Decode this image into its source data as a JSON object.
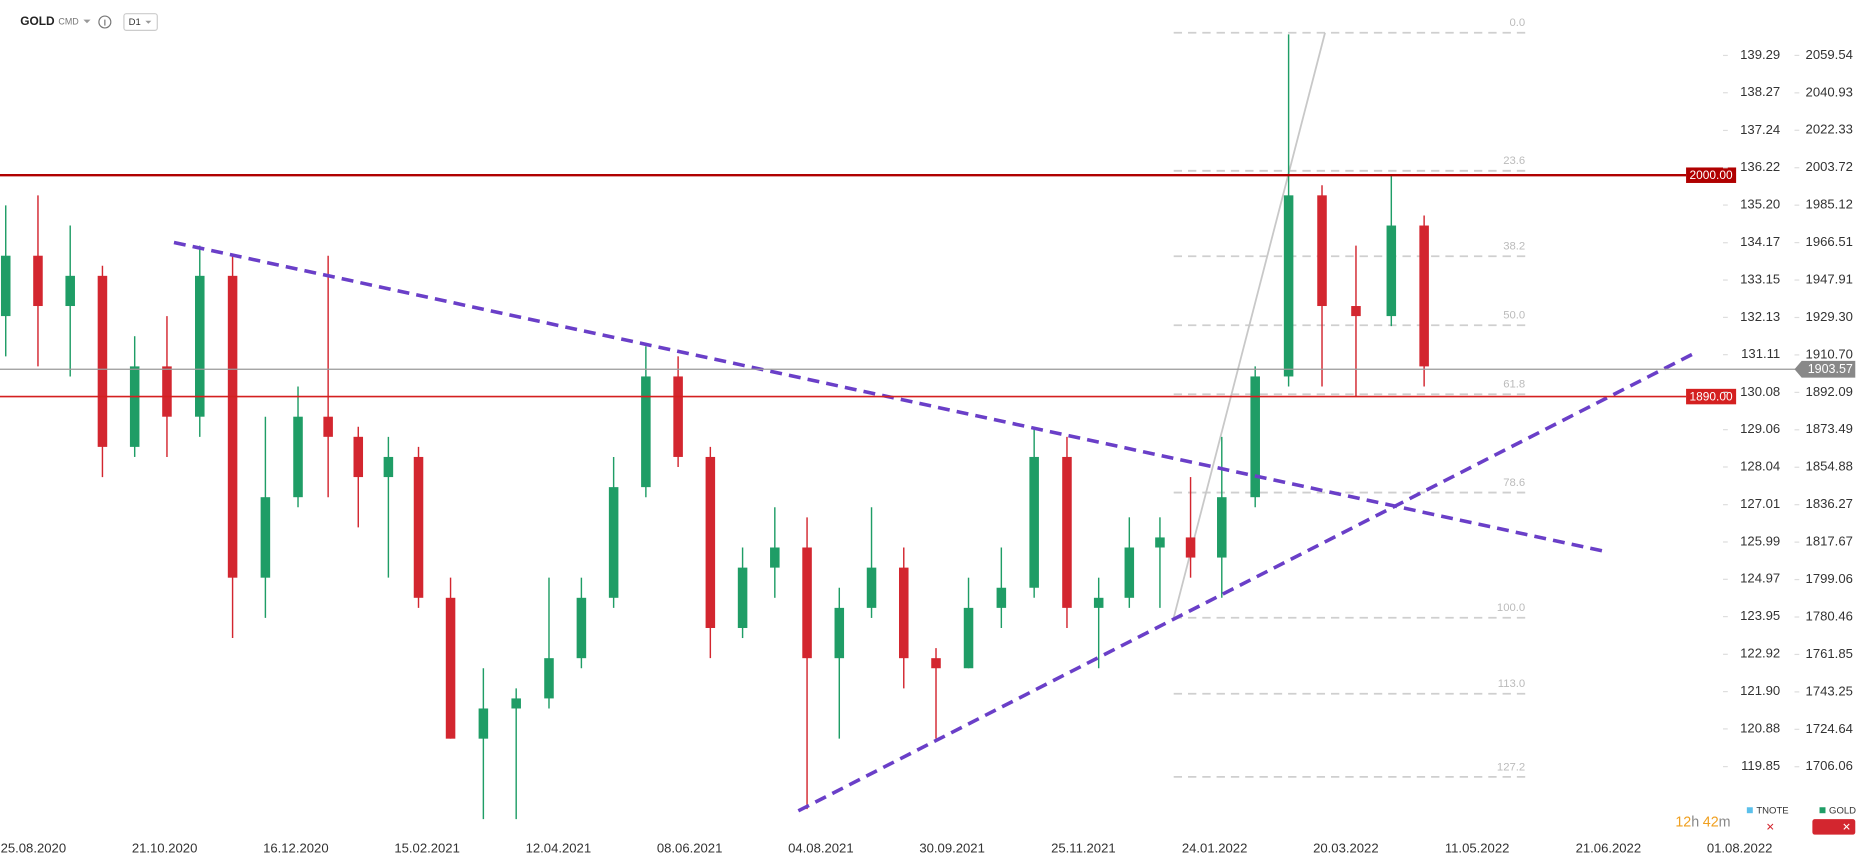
{
  "header": {
    "symbol": "GOLD",
    "market": "CMD",
    "interval": "D1"
  },
  "chart_data": {
    "type": "candlestick",
    "x": [
      "13.08.2020",
      "27.08.2020",
      "10.09.2020",
      "24.09.2020",
      "08.10.2020",
      "22.10.2020",
      "05.11.2020",
      "19.11.2020",
      "03.12.2020",
      "17.12.2020",
      "31.12.2020",
      "14.01.2021",
      "28.01.2021",
      "11.02.2021",
      "25.02.2021",
      "11.03.2021",
      "25.03.2021",
      "08.04.2021",
      "22.04.2021",
      "06.05.2021",
      "20.05.2021",
      "03.06.2021",
      "17.06.2021",
      "01.07.2021",
      "15.07.2021",
      "29.07.2021",
      "12.08.2021",
      "26.08.2021",
      "09.09.2021",
      "23.09.2021",
      "07.10.2021",
      "21.10.2021",
      "04.11.2021",
      "18.11.2021",
      "02.12.2021",
      "16.12.2021",
      "30.12.2021",
      "13.01.2022",
      "27.01.2022",
      "10.02.2022",
      "24.02.2022",
      "10.03.2022",
      "24.03.2022",
      "07.04.2022",
      "20.04.2022"
    ],
    "open": [
      1930,
      1960,
      1935,
      1950,
      1865,
      1905,
      1880,
      1950,
      1800,
      1840,
      1880,
      1870,
      1850,
      1860,
      1790,
      1720,
      1735,
      1740,
      1760,
      1790,
      1845,
      1900,
      1860,
      1775,
      1805,
      1815,
      1760,
      1785,
      1805,
      1760,
      1755,
      1785,
      1795,
      1860,
      1785,
      1790,
      1815,
      1820,
      1810,
      1840,
      1900,
      1990,
      1935,
      1930,
      1975
    ],
    "high": [
      1985,
      1990,
      1975,
      1955,
      1920,
      1930,
      1965,
      1960,
      1880,
      1895,
      1960,
      1875,
      1870,
      1865,
      1800,
      1755,
      1745,
      1800,
      1800,
      1860,
      1915,
      1910,
      1865,
      1815,
      1835,
      1830,
      1795,
      1835,
      1815,
      1765,
      1800,
      1815,
      1875,
      1870,
      1800,
      1830,
      1830,
      1850,
      1870,
      1905,
      2070,
      1995,
      1965,
      2000,
      1980
    ],
    "low": [
      1910,
      1905,
      1900,
      1850,
      1860,
      1860,
      1870,
      1770,
      1780,
      1835,
      1840,
      1825,
      1800,
      1785,
      1720,
      1680,
      1680,
      1735,
      1755,
      1785,
      1840,
      1855,
      1760,
      1770,
      1790,
      1685,
      1720,
      1780,
      1745,
      1720,
      1755,
      1775,
      1790,
      1775,
      1755,
      1785,
      1785,
      1800,
      1790,
      1835,
      1895,
      1895,
      1890,
      1925,
      1895
    ],
    "close": [
      1960,
      1935,
      1950,
      1865,
      1905,
      1880,
      1950,
      1800,
      1840,
      1880,
      1870,
      1850,
      1860,
      1790,
      1720,
      1735,
      1740,
      1760,
      1790,
      1845,
      1900,
      1860,
      1775,
      1805,
      1815,
      1760,
      1785,
      1805,
      1760,
      1755,
      1785,
      1795,
      1860,
      1785,
      1790,
      1815,
      1820,
      1810,
      1840,
      1900,
      1990,
      1935,
      1930,
      1975,
      1905
    ],
    "up_color": "#1f9d66",
    "down_color": "#d3262f",
    "xticks": [
      "25.08.2020",
      "21.10.2020",
      "16.12.2020",
      "15.02.2021",
      "12.04.2021",
      "08.06.2021",
      "04.08.2021",
      "30.09.2021",
      "25.11.2021",
      "24.01.2022",
      "20.03.2022",
      "11.05.2022",
      "21.06.2022",
      "01.08.2022"
    ],
    "ylim": [
      1672.3,
      2086.8
    ],
    "yticks": [
      2059.54,
      2040.93,
      2022.33,
      2003.72,
      1985.12,
      1966.51,
      1947.91,
      {
        "value": 1929.3,
        "label": "1929.30"
      },
      {
        "value": 1910.7,
        "label": "1910.70"
      },
      1892.09,
      1873.49,
      1854.88,
      1836.27,
      1817.67,
      1799.06,
      1780.46,
      1761.85,
      1743.25,
      1724.64,
      1706.06
    ],
    "y2lim": [
      117.99,
      140.79
    ],
    "y2ticks": [
      139.29,
      138.27,
      137.24,
      136.22,
      {
        "value": 135.2,
        "label": "135.20"
      },
      134.17,
      133.15,
      132.13,
      131.11,
      130.08,
      129.06,
      128.04,
      127.01,
      125.99,
      124.97,
      123.95,
      122.92,
      {
        "value": 121.9,
        "label": "121.90"
      },
      120.88,
      119.85
    ],
    "price_levels": [
      {
        "value": 2000,
        "label": "2000.00",
        "color": "#b00000"
      },
      {
        "value": 1890,
        "label": "1890.00",
        "color": "#d42020"
      }
    ],
    "current_price": 1903.57,
    "fibonacci": {
      "high": 2070.8,
      "low": 1780.1,
      "levels": [
        {
          "value": 0,
          "label": "0.0"
        },
        23.6,
        38.2,
        {
          "value": 50,
          "label": "50.0"
        },
        61.8,
        78.6,
        {
          "value": 100,
          "label": "100.0"
        },
        {
          "value": 113,
          "label": "113.0"
        },
        127.2
      ]
    },
    "legend": [
      {
        "name": "TNOTE",
        "color": "#5bc0eb"
      },
      {
        "name": "GOLD",
        "color": "#1f9d66"
      }
    ]
  },
  "timer": {
    "hours": "12",
    "h": "h",
    "minutes": "42",
    "m": "m"
  }
}
